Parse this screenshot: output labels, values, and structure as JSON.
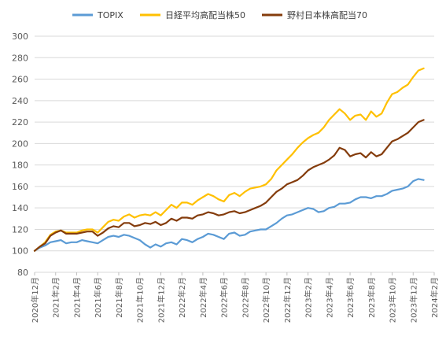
{
  "chart_data": {
    "type": "line",
    "title": "",
    "xlabel": "",
    "ylabel": "",
    "ylim": [
      80,
      300
    ],
    "yticks": [
      80,
      100,
      120,
      140,
      160,
      180,
      200,
      220,
      240,
      260,
      280,
      300
    ],
    "grid": true,
    "legend_position": "top",
    "xticks": [
      "2020年12月",
      "2021年2月",
      "2021年4月",
      "2021年6月",
      "2021年8月",
      "2021年10月",
      "2021年12月",
      "2022年2月",
      "2022年4月",
      "2022年6月",
      "2022年8月",
      "2022年10月",
      "2022年12月",
      "2023年2月",
      "2023年4月",
      "2023年6月",
      "2023年8月",
      "2023年10月",
      "2023年12月",
      "2024年2月"
    ],
    "series": [
      {
        "name": "TOPIX",
        "color": "#5b9bd5",
        "points": [
          [
            0,
            100
          ],
          [
            0.5,
            103
          ],
          [
            1,
            105
          ],
          [
            1.5,
            108
          ],
          [
            2,
            109
          ],
          [
            2.5,
            110
          ],
          [
            3,
            107
          ],
          [
            3.5,
            108
          ],
          [
            4,
            108
          ],
          [
            4.5,
            110
          ],
          [
            5,
            109
          ],
          [
            5.5,
            108
          ],
          [
            6,
            107
          ],
          [
            6.5,
            110
          ],
          [
            7,
            113
          ],
          [
            7.5,
            114
          ],
          [
            8,
            113
          ],
          [
            8.5,
            115
          ],
          [
            9,
            114
          ],
          [
            9.5,
            112
          ],
          [
            10,
            110
          ],
          [
            10.5,
            106
          ],
          [
            11,
            103
          ],
          [
            11.5,
            106
          ],
          [
            12,
            104
          ],
          [
            12.5,
            107
          ],
          [
            13,
            108
          ],
          [
            13.5,
            106
          ],
          [
            14,
            111
          ],
          [
            14.5,
            110
          ],
          [
            15,
            108
          ],
          [
            15.5,
            111
          ],
          [
            16,
            113
          ],
          [
            16.5,
            116
          ],
          [
            17,
            115
          ],
          [
            17.5,
            113
          ],
          [
            18,
            111
          ],
          [
            18.5,
            116
          ],
          [
            19,
            117
          ],
          [
            19.5,
            114
          ],
          [
            20,
            115
          ],
          [
            20.5,
            118
          ],
          [
            21,
            119
          ],
          [
            21.5,
            120
          ],
          [
            22,
            120
          ],
          [
            22.5,
            123
          ],
          [
            23,
            126
          ],
          [
            23.5,
            130
          ],
          [
            24,
            133
          ],
          [
            24.5,
            134
          ],
          [
            25,
            136
          ],
          [
            25.5,
            138
          ],
          [
            26,
            140
          ],
          [
            26.5,
            139
          ],
          [
            27,
            136
          ],
          [
            27.5,
            137
          ],
          [
            28,
            140
          ],
          [
            28.5,
            141
          ],
          [
            29,
            144
          ],
          [
            29.5,
            144
          ],
          [
            30,
            145
          ],
          [
            30.5,
            148
          ],
          [
            31,
            150
          ],
          [
            31.5,
            150
          ],
          [
            32,
            149
          ],
          [
            32.5,
            151
          ],
          [
            33,
            151
          ],
          [
            33.5,
            153
          ],
          [
            34,
            156
          ],
          [
            34.5,
            157
          ],
          [
            35,
            158
          ],
          [
            35.5,
            160
          ],
          [
            36,
            165
          ],
          [
            36.5,
            167
          ],
          [
            37,
            166
          ]
        ]
      },
      {
        "name": "日経平均高配当株50",
        "color": "#ffc000",
        "points": [
          [
            0,
            100
          ],
          [
            0.5,
            104
          ],
          [
            1,
            108
          ],
          [
            1.5,
            115
          ],
          [
            2,
            118
          ],
          [
            2.5,
            119
          ],
          [
            3,
            117
          ],
          [
            3.5,
            117
          ],
          [
            4,
            117
          ],
          [
            4.5,
            119
          ],
          [
            5,
            120
          ],
          [
            5.5,
            120
          ],
          [
            6,
            117
          ],
          [
            6.5,
            122
          ],
          [
            7,
            127
          ],
          [
            7.5,
            129
          ],
          [
            8,
            128
          ],
          [
            8.5,
            132
          ],
          [
            9,
            134
          ],
          [
            9.5,
            131
          ],
          [
            10,
            133
          ],
          [
            10.5,
            134
          ],
          [
            11,
            133
          ],
          [
            11.5,
            136
          ],
          [
            12,
            133
          ],
          [
            12.5,
            138
          ],
          [
            13,
            143
          ],
          [
            13.5,
            140
          ],
          [
            14,
            145
          ],
          [
            14.5,
            145
          ],
          [
            15,
            143
          ],
          [
            15.5,
            147
          ],
          [
            16,
            150
          ],
          [
            16.5,
            153
          ],
          [
            17,
            151
          ],
          [
            17.5,
            148
          ],
          [
            18,
            146
          ],
          [
            18.5,
            152
          ],
          [
            19,
            154
          ],
          [
            19.5,
            151
          ],
          [
            20,
            155
          ],
          [
            20.5,
            158
          ],
          [
            21,
            159
          ],
          [
            21.5,
            160
          ],
          [
            22,
            162
          ],
          [
            22.5,
            167
          ],
          [
            23,
            175
          ],
          [
            23.5,
            180
          ],
          [
            24,
            185
          ],
          [
            24.5,
            190
          ],
          [
            25,
            196
          ],
          [
            25.5,
            201
          ],
          [
            26,
            205
          ],
          [
            26.5,
            208
          ],
          [
            27,
            210
          ],
          [
            27.5,
            215
          ],
          [
            28,
            222
          ],
          [
            28.5,
            227
          ],
          [
            29,
            232
          ],
          [
            29.5,
            228
          ],
          [
            30,
            222
          ],
          [
            30.5,
            226
          ],
          [
            31,
            227
          ],
          [
            31.5,
            222
          ],
          [
            32,
            230
          ],
          [
            32.5,
            225
          ],
          [
            33,
            228
          ],
          [
            33.5,
            238
          ],
          [
            34,
            246
          ],
          [
            34.5,
            248
          ],
          [
            35,
            252
          ],
          [
            35.5,
            255
          ],
          [
            36,
            262
          ],
          [
            36.5,
            268
          ],
          [
            37,
            270
          ]
        ]
      },
      {
        "name": "野村日本株高配当70",
        "color": "#843c0c",
        "points": [
          [
            0,
            100
          ],
          [
            0.5,
            104
          ],
          [
            1,
            107
          ],
          [
            1.5,
            114
          ],
          [
            2,
            117
          ],
          [
            2.5,
            119
          ],
          [
            3,
            116
          ],
          [
            3.5,
            116
          ],
          [
            4,
            116
          ],
          [
            4.5,
            117
          ],
          [
            5,
            118
          ],
          [
            5.5,
            118
          ],
          [
            6,
            114
          ],
          [
            6.5,
            117
          ],
          [
            7,
            121
          ],
          [
            7.5,
            123
          ],
          [
            8,
            122
          ],
          [
            8.5,
            126
          ],
          [
            9,
            126
          ],
          [
            9.5,
            123
          ],
          [
            10,
            124
          ],
          [
            10.5,
            126
          ],
          [
            11,
            125
          ],
          [
            11.5,
            127
          ],
          [
            12,
            124
          ],
          [
            12.5,
            126
          ],
          [
            13,
            130
          ],
          [
            13.5,
            128
          ],
          [
            14,
            131
          ],
          [
            14.5,
            131
          ],
          [
            15,
            130
          ],
          [
            15.5,
            133
          ],
          [
            16,
            134
          ],
          [
            16.5,
            136
          ],
          [
            17,
            135
          ],
          [
            17.5,
            133
          ],
          [
            18,
            134
          ],
          [
            18.5,
            136
          ],
          [
            19,
            137
          ],
          [
            19.5,
            135
          ],
          [
            20,
            136
          ],
          [
            20.5,
            138
          ],
          [
            21,
            140
          ],
          [
            21.5,
            142
          ],
          [
            22,
            145
          ],
          [
            22.5,
            150
          ],
          [
            23,
            155
          ],
          [
            23.5,
            158
          ],
          [
            24,
            162
          ],
          [
            24.5,
            164
          ],
          [
            25,
            166
          ],
          [
            25.5,
            170
          ],
          [
            26,
            175
          ],
          [
            26.5,
            178
          ],
          [
            27,
            180
          ],
          [
            27.5,
            182
          ],
          [
            28,
            185
          ],
          [
            28.5,
            189
          ],
          [
            29,
            196
          ],
          [
            29.5,
            194
          ],
          [
            30,
            188
          ],
          [
            30.5,
            190
          ],
          [
            31,
            191
          ],
          [
            31.5,
            187
          ],
          [
            32,
            192
          ],
          [
            32.5,
            188
          ],
          [
            33,
            190
          ],
          [
            33.5,
            196
          ],
          [
            34,
            202
          ],
          [
            34.5,
            204
          ],
          [
            35,
            207
          ],
          [
            35.5,
            210
          ],
          [
            36,
            215
          ],
          [
            36.5,
            220
          ],
          [
            37,
            222
          ]
        ]
      }
    ]
  }
}
